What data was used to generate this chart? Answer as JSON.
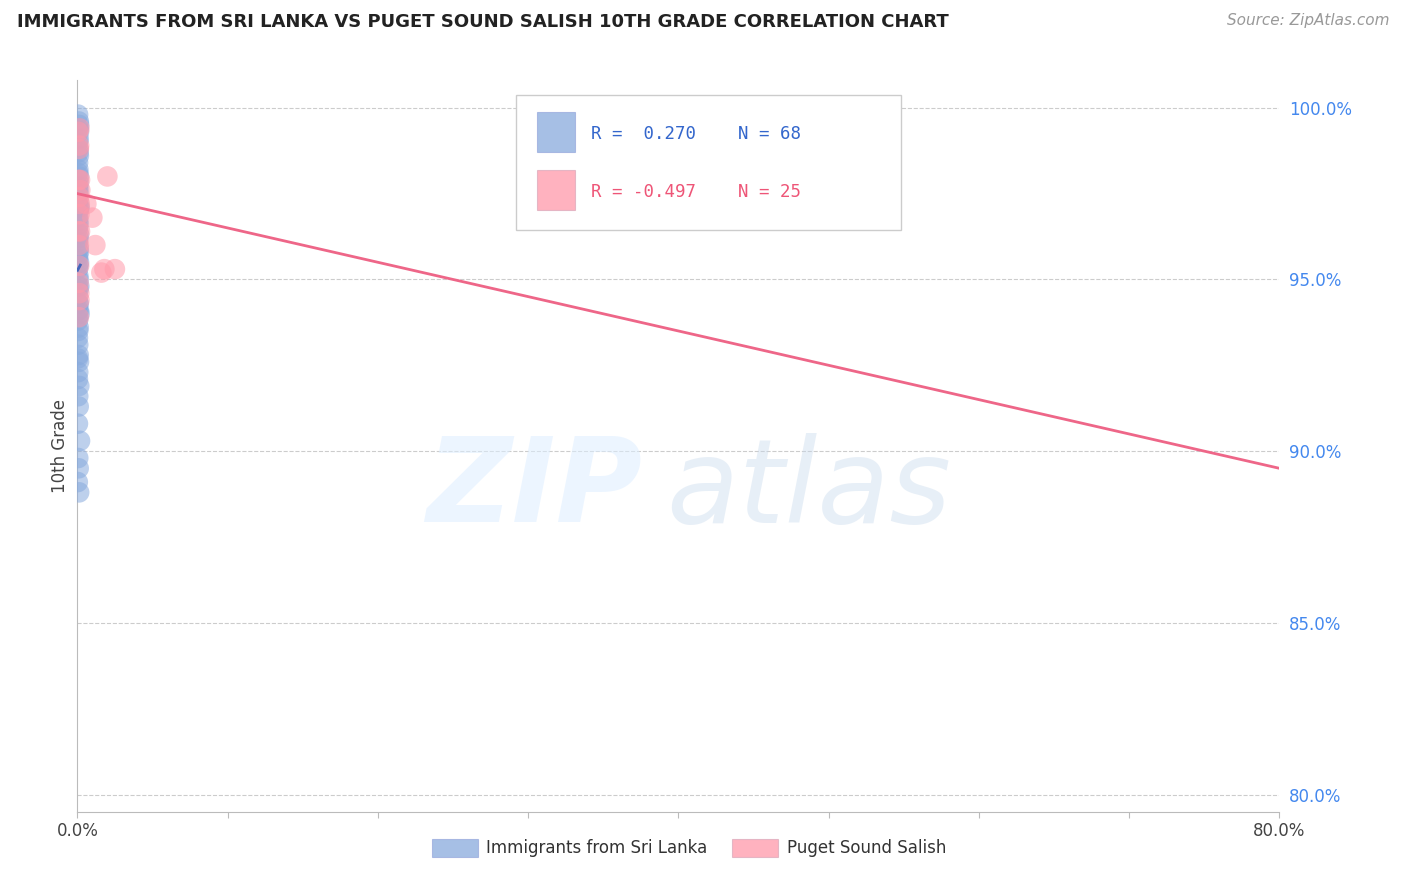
{
  "title": "IMMIGRANTS FROM SRI LANKA VS PUGET SOUND SALISH 10TH GRADE CORRELATION CHART",
  "source": "Source: ZipAtlas.com",
  "ylabel": "10th Grade",
  "ylabel_right_ticks": [
    80.0,
    85.0,
    90.0,
    95.0,
    100.0
  ],
  "legend_blue_label": "Immigrants from Sri Lanka",
  "legend_pink_label": "Puget Sound Salish",
  "legend_blue_r": "R =  0.270",
  "legend_blue_n": "N = 68",
  "legend_pink_r": "R = -0.497",
  "legend_pink_n": "N = 25",
  "blue_color": "#88AADD",
  "pink_color": "#FF99AA",
  "blue_line_color": "#4466BB",
  "pink_line_color": "#EE6688",
  "blue_scatter_x": [
    0.0005,
    0.0008,
    0.001,
    0.0006,
    0.0012,
    0.0007,
    0.0009,
    0.0011,
    0.0005,
    0.0008,
    0.001,
    0.0006,
    0.0007,
    0.0009,
    0.0011,
    0.0005,
    0.0006,
    0.0008,
    0.0004,
    0.0007,
    0.0009,
    0.0011,
    0.0005,
    0.0007,
    0.0004,
    0.0008,
    0.0007,
    0.0004,
    0.0011,
    0.0009,
    0.0006,
    0.0004,
    0.0009,
    0.0007,
    0.0004,
    0.0011,
    0.0007,
    0.0004,
    0.0009,
    0.0007,
    0.0004,
    0.0013,
    0.0006,
    0.0004,
    0.0009,
    0.0006,
    0.0011,
    0.0004,
    0.0015,
    0.0006,
    0.0009,
    0.0004,
    0.0006,
    0.0009,
    0.0004,
    0.0011,
    0.0006,
    0.0004,
    0.0013,
    0.0006,
    0.0009,
    0.0004,
    0.0018,
    0.0006,
    0.0009,
    0.0015,
    0.0003,
    0.0012
  ],
  "blue_scatter_y": [
    0.998,
    0.994,
    0.996,
    0.99,
    0.995,
    0.988,
    0.991,
    0.993,
    0.984,
    0.987,
    0.986,
    0.981,
    0.982,
    0.978,
    0.98,
    0.977,
    0.975,
    0.976,
    0.972,
    0.973,
    0.97,
    0.971,
    0.968,
    0.967,
    0.965,
    0.966,
    0.962,
    0.961,
    0.963,
    0.959,
    0.957,
    0.956,
    0.958,
    0.954,
    0.953,
    0.955,
    0.951,
    0.948,
    0.95,
    0.947,
    0.945,
    0.948,
    0.943,
    0.941,
    0.943,
    0.939,
    0.941,
    0.938,
    0.94,
    0.935,
    0.936,
    0.933,
    0.931,
    0.928,
    0.927,
    0.926,
    0.923,
    0.921,
    0.919,
    0.916,
    0.913,
    0.908,
    0.903,
    0.898,
    0.895,
    0.971,
    0.891,
    0.888
  ],
  "pink_scatter_x": [
    0.0006,
    0.001,
    0.0008,
    0.0014,
    0.0012,
    0.001,
    0.0008,
    0.0018,
    0.0014,
    0.001,
    0.0016,
    0.0012,
    0.0008,
    0.002,
    0.0014,
    0.001,
    0.0018,
    0.0013,
    0.006,
    0.01,
    0.016,
    0.02,
    0.025,
    0.012,
    0.018
  ],
  "pink_scatter_y": [
    0.993,
    0.988,
    0.979,
    0.994,
    0.989,
    0.974,
    0.964,
    0.979,
    0.969,
    0.96,
    0.972,
    0.954,
    0.949,
    0.976,
    0.944,
    0.939,
    0.964,
    0.946,
    0.972,
    0.968,
    0.952,
    0.98,
    0.953,
    0.96,
    0.953
  ],
  "pink_line_x0": 0.0,
  "pink_line_x1": 0.8,
  "pink_line_y0": 0.975,
  "pink_line_y1": 0.895,
  "xlim": [
    0.0,
    0.8
  ],
  "ylim": [
    0.795,
    1.008
  ],
  "background_color": "#ffffff",
  "grid_color": "#cccccc",
  "title_fontsize": 13,
  "source_fontsize": 11
}
